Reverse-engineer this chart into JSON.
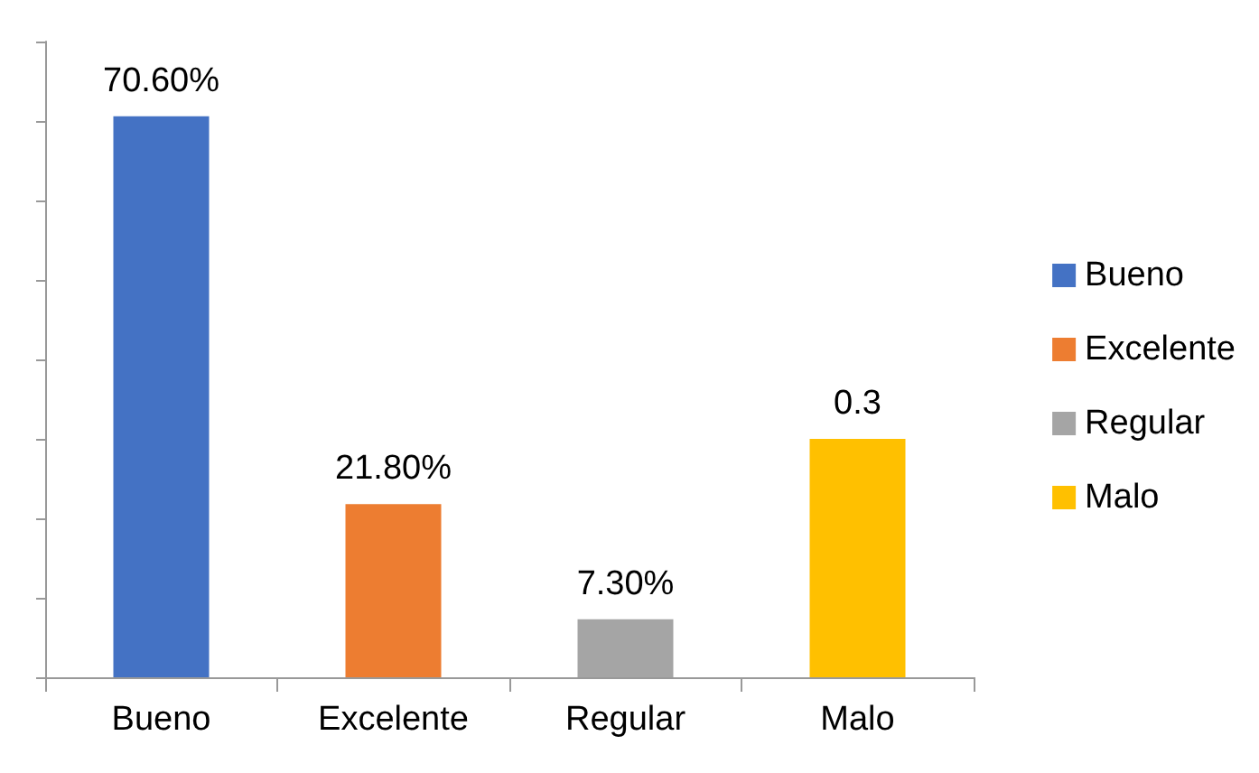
{
  "chart_data": {
    "type": "bar",
    "categories": [
      "Bueno",
      "Excelente",
      "Regular",
      "Malo"
    ],
    "series": [
      {
        "name": "Bueno",
        "color": "#4472c4",
        "values": [
          0.706,
          null,
          null,
          null
        ],
        "value_labels": [
          "70.60%",
          null,
          null,
          null
        ]
      },
      {
        "name": "Excelente",
        "color": "#ed7d31",
        "values": [
          null,
          0.218,
          null,
          null
        ],
        "value_labels": [
          null,
          "21.80%",
          null,
          null
        ]
      },
      {
        "name": "Regular",
        "color": "#a5a5a5",
        "values": [
          null,
          null,
          0.073,
          null
        ],
        "value_labels": [
          null,
          null,
          "7.30%",
          null
        ]
      },
      {
        "name": "Malo",
        "color": "#ffc000",
        "values": [
          null,
          null,
          null,
          0.3
        ],
        "value_labels": [
          null,
          null,
          null,
          "0.3"
        ]
      }
    ],
    "ylim": [
      0,
      0.8
    ],
    "yticks": [
      {
        "value": 0,
        "label": null
      },
      {
        "value": 0.1,
        "label": null
      },
      {
        "value": 0.2,
        "label": null
      },
      {
        "value": 0.3,
        "label": null
      },
      {
        "value": 0.4,
        "label": null
      },
      {
        "value": 0.5,
        "label": null
      },
      {
        "value": 0.6,
        "label": null
      },
      {
        "value": 0.7,
        "label": null
      },
      {
        "value": 0.8,
        "label": null
      }
    ],
    "tick_labels": "x",
    "legend": "right",
    "grid": false
  }
}
